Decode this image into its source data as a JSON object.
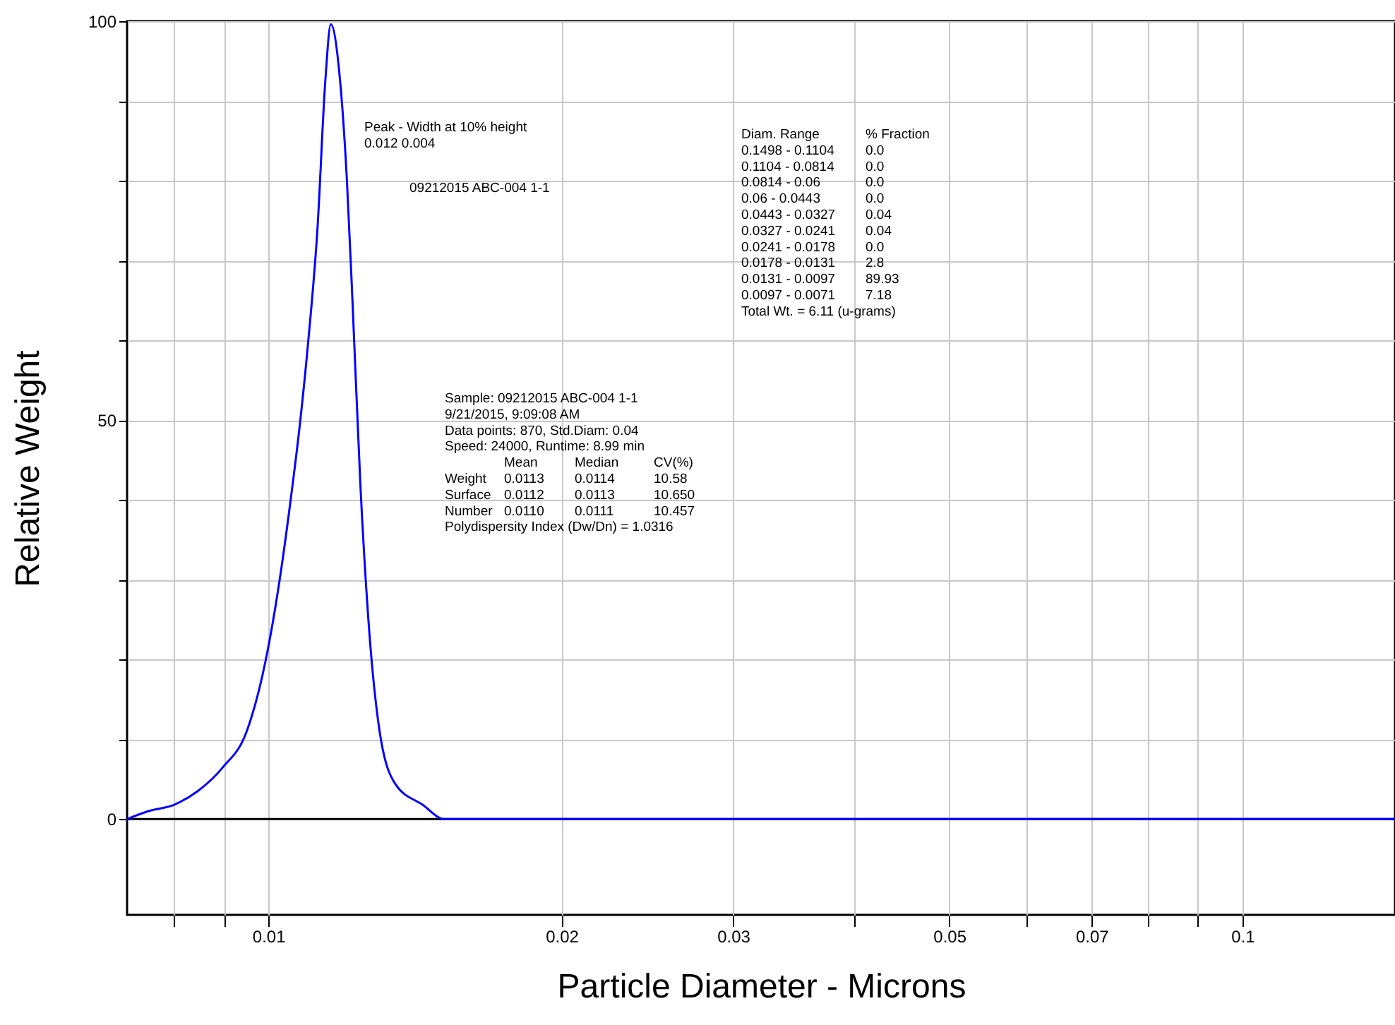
{
  "chart_data": {
    "type": "line",
    "xlabel": "Particle Diameter  -  Microns",
    "ylabel": "Relative Weight",
    "log": "x",
    "x": [
      0.00716,
      0.00753,
      0.008,
      0.00846,
      0.00898,
      0.0095,
      0.00994,
      0.01027,
      0.01053,
      0.01078,
      0.01099,
      0.01123,
      0.01144,
      0.01159,
      0.01182,
      0.01204,
      0.0122,
      0.01243,
      0.01267,
      0.013,
      0.0135,
      0.0144,
      0.01516,
      0.02,
      0.05,
      0.1434
    ],
    "series": [
      {
        "color": "#0000ff",
        "values": [
          0,
          1,
          1.8,
          3.5,
          6.5,
          11,
          20,
          30,
          39.6,
          49.8,
          60,
          74,
          92.5,
          99.6,
          93.8,
          80,
          64.8,
          41.8,
          24.8,
          11.2,
          4.4,
          1.8,
          0,
          0,
          0,
          0
        ]
      }
    ],
    "xlim": [
      0.00716,
      0.1434
    ],
    "xticks": [
      {
        "value": 0.008,
        "label": null
      },
      {
        "value": 0.009,
        "label": null
      },
      0.01,
      0.02,
      0.03,
      {
        "value": 0.04,
        "label": null
      },
      0.05,
      {
        "value": 0.06,
        "label": null
      },
      0.07,
      {
        "value": 0.08,
        "label": null
      },
      {
        "value": 0.09,
        "label": null
      },
      0.1
    ],
    "ylim": [
      -12,
      100
    ],
    "yticks": [
      0,
      {
        "value": 10,
        "label": null
      },
      {
        "value": 20,
        "label": null
      },
      {
        "value": 30,
        "label": null
      },
      {
        "value": 40,
        "label": null
      },
      50,
      {
        "value": 60,
        "label": null
      },
      {
        "value": 70,
        "label": null
      },
      {
        "value": 80,
        "label": null
      },
      {
        "value": 90,
        "label": null
      },
      100
    ],
    "grid": true,
    "ref_lines": [
      {
        "axis": "y",
        "value": 0,
        "color": "#000000"
      }
    ],
    "annotations": [
      "Peak  -  Width at 10% height\n 0.012   0.004",
      "09212015 ABC-004 1-1",
      "Diam. Range\t% Fraction\n0.1498 - 0.1104\t0.0\n0.1104 - 0.0814\t0.0\n0.0814 - 0.06\t0.0\n0.06 - 0.0443\t0.0\n0.0443 - 0.0327\t0.04\n0.0327 - 0.0241\t0.04\n0.0241 - 0.0178\t0.0\n0.0178 - 0.0131\t2.8\n0.0131 - 0.0097\t89.93\n0.0097 - 0.0071\t7.18\nTotal Wt. = 6.11 (u-grams)",
      "Sample: 09212015 ABC-004 1-1\n9/21/2015,   9:09:08 AM\nData points: 870,  Std.Diam: 0.04\nSpeed: 24000,  Runtime: 8.99 min\n\tMean\tMedian\tCV(%)\nWeight\t0.0113\t0.0114\t10.58\nSurface\t0.0112\t0.0113\t10.650\nNumber\t0.0110\t0.0111\t10.457\nPolydispersity Index (Dw/Dn) = 1.0316"
    ]
  }
}
